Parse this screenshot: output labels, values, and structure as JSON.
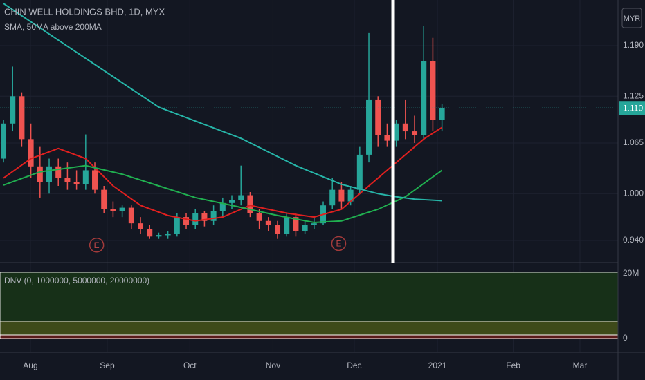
{
  "chart_data": {
    "type": "candlestick",
    "title": "CHIN WELL HOLDINGS BHD, 1D, MYX",
    "subtitle": "SMA, 50MA above 200MA",
    "currency": "MYR",
    "up_color": "#26a69a",
    "down_color": "#ef5350",
    "candles": [
      [
        1.045,
        1.095,
        1.04,
        1.09
      ],
      [
        1.09,
        1.163,
        1.08,
        1.125
      ],
      [
        1.125,
        1.13,
        1.06,
        1.07
      ],
      [
        1.07,
        1.09,
        1.02,
        1.035
      ],
      [
        1.035,
        1.06,
        0.995,
        1.015
      ],
      [
        1.015,
        1.045,
        1.0,
        1.035
      ],
      [
        1.035,
        1.045,
        1.01,
        1.02
      ],
      [
        1.02,
        1.04,
        1.005,
        1.015
      ],
      [
        1.015,
        1.03,
        1.005,
        1.012
      ],
      [
        1.012,
        1.076,
        1.005,
        1.03
      ],
      [
        1.03,
        1.04,
        1.0,
        1.005
      ],
      [
        1.005,
        1.01,
        0.975,
        0.98
      ],
      [
        0.98,
        0.99,
        0.97,
        0.978
      ],
      [
        0.978,
        0.985,
        0.97,
        0.982
      ],
      [
        0.982,
        0.985,
        0.955,
        0.962
      ],
      [
        0.962,
        0.97,
        0.948,
        0.955
      ],
      [
        0.955,
        0.96,
        0.942,
        0.945
      ],
      [
        0.945,
        0.95,
        0.942,
        0.947
      ],
      [
        0.947,
        0.952,
        0.942,
        0.948
      ],
      [
        0.948,
        0.975,
        0.945,
        0.97
      ],
      [
        0.97,
        0.975,
        0.955,
        0.96
      ],
      [
        0.96,
        0.98,
        0.955,
        0.975
      ],
      [
        0.975,
        0.978,
        0.958,
        0.965
      ],
      [
        0.965,
        0.985,
        0.96,
        0.978
      ],
      [
        0.978,
        0.995,
        0.97,
        0.988
      ],
      [
        0.988,
        0.998,
        0.98,
        0.992
      ],
      [
        0.992,
        1.036,
        0.985,
        0.998
      ],
      [
        0.998,
        1.002,
        0.97,
        0.975
      ],
      [
        0.975,
        0.98,
        0.955,
        0.965
      ],
      [
        0.965,
        0.97,
        0.952,
        0.96
      ],
      [
        0.96,
        0.965,
        0.942,
        0.948
      ],
      [
        0.948,
        0.975,
        0.945,
        0.97
      ],
      [
        0.97,
        0.975,
        0.945,
        0.952
      ],
      [
        0.952,
        0.965,
        0.948,
        0.96
      ],
      [
        0.96,
        0.97,
        0.955,
        0.962
      ],
      [
        0.962,
        0.99,
        0.96,
        0.985
      ],
      [
        0.985,
        1.02,
        0.98,
        1.005
      ],
      [
        1.005,
        1.015,
        0.98,
        0.99
      ],
      [
        0.99,
        1.01,
        0.985,
        1.005
      ],
      [
        1.005,
        1.06,
        1.0,
        1.05
      ],
      [
        1.05,
        1.206,
        1.04,
        1.12
      ],
      [
        1.12,
        1.125,
        1.06,
        1.075
      ],
      [
        1.075,
        1.09,
        1.06,
        1.068
      ],
      [
        1.068,
        1.095,
        1.06,
        1.09
      ],
      [
        1.09,
        1.12,
        1.07,
        1.08
      ],
      [
        1.08,
        1.1,
        1.065,
        1.075
      ],
      [
        1.075,
        1.215,
        1.07,
        1.17
      ],
      [
        1.17,
        1.2,
        1.08,
        1.095
      ],
      [
        1.095,
        1.115,
        1.08,
        1.11
      ]
    ],
    "series": [
      {
        "color": "#e0201f",
        "x": [
          0,
          3,
          6,
          9,
          12,
          15,
          18,
          21,
          24,
          27,
          31,
          34,
          37,
          40,
          43,
          46,
          48
        ],
        "values": [
          1.02,
          1.045,
          1.058,
          1.045,
          1.01,
          0.985,
          0.972,
          0.965,
          0.97,
          0.985,
          0.975,
          0.97,
          0.98,
          1.01,
          1.04,
          1.07,
          1.085
        ]
      },
      {
        "color": "#20b050",
        "x": [
          0,
          4,
          9,
          13,
          17,
          21,
          25,
          30,
          34,
          37,
          41,
          44,
          48
        ],
        "values": [
          1.011,
          1.028,
          1.036,
          1.025,
          1.01,
          0.995,
          0.985,
          0.972,
          0.963,
          0.965,
          0.98,
          0.996,
          1.03
        ]
      },
      {
        "color": "#26b5a8",
        "x": [
          0,
          17,
          26,
          32,
          37,
          41,
          43,
          45,
          48
        ],
        "values": [
          1.244,
          1.111,
          1.071,
          1.036,
          1.012,
          1.0,
          0.996,
          0.993,
          0.991
        ]
      }
    ],
    "last_price": {
      "value": 1.11,
      "label": "1.110"
    },
    "ylim": [
      0.9116,
      1.2485
    ],
    "yticks": [
      {
        "value": 0.94,
        "label": "0.940"
      },
      {
        "value": 1.0,
        "label": "1.000"
      },
      {
        "value": 1.065,
        "label": "1.065"
      },
      {
        "value": 1.125,
        "label": "1.125"
      },
      {
        "value": 1.19,
        "label": "1.190"
      }
    ],
    "xlim": [
      -0.38,
      67.27
    ],
    "xticks": [
      {
        "value": 2.95,
        "label": "Aug"
      },
      {
        "value": 11.36,
        "label": "Sep"
      },
      {
        "value": 20.4,
        "label": "Oct"
      },
      {
        "value": 29.5,
        "label": "Nov"
      },
      {
        "value": 38.4,
        "label": "Dec"
      },
      {
        "value": 47.5,
        "label": "2021"
      },
      {
        "value": 55.8,
        "label": "Feb"
      },
      {
        "value": 63.1,
        "label": "Mar"
      }
    ],
    "grid": true,
    "earnings": [
      {
        "x": 10.2,
        "y": 0.934,
        "label": "E"
      },
      {
        "x": 36.7,
        "y": 0.936,
        "label": "E"
      }
    ],
    "indicator": {
      "label": "DNV (0, 1000000, 5000000, 20000000)",
      "top_label": "20M",
      "bottom_label": "0"
    }
  }
}
